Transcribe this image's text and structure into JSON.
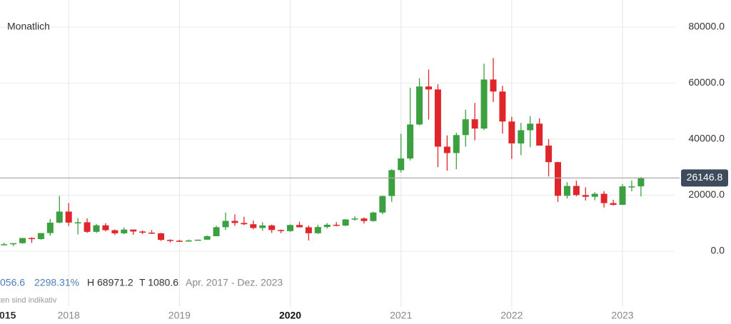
{
  "chart_data": {
    "type": "candlestick",
    "title": "Monatlich",
    "categories": [
      null,
      null,
      null,
      null,
      null,
      null,
      null,
      "2018",
      null,
      null,
      null,
      null,
      null,
      null,
      null,
      null,
      null,
      null,
      null,
      "2019",
      null,
      null,
      null,
      null,
      null,
      null,
      null,
      null,
      null,
      null,
      null,
      "2020",
      null,
      null,
      null,
      null,
      null,
      null,
      null,
      null,
      null,
      null,
      null,
      "2021",
      null,
      null,
      null,
      null,
      null,
      null,
      null,
      null,
      null,
      null,
      null,
      "2022",
      null,
      null,
      null,
      null,
      null,
      null,
      null,
      null,
      null,
      null,
      null,
      "2023",
      null,
      null
    ],
    "open": [
      2400,
      2480,
      2870,
      4700,
      4340,
      6470,
      10200,
      14150,
      10220,
      10330,
      6920,
      9240,
      7500,
      6390,
      7730,
      7030,
      6630,
      6370,
      4040,
      3740,
      3460,
      3850,
      4110,
      5350,
      8570,
      10820,
      10090,
      9630,
      8290,
      9200,
      7570,
      7190,
      9350,
      8540,
      6420,
      8630,
      9450,
      9140,
      11350,
      11680,
      10780,
      13800,
      19700,
      28950,
      33100,
      45240,
      58800,
      57750,
      37330,
      35040,
      41460,
      47100,
      43790,
      61300,
      57000,
      46300,
      38480,
      43190,
      45540,
      37700,
      31790,
      19780,
      23300,
      20050,
      19430,
      20500,
      17170,
      16550,
      23140,
      23150
    ],
    "high": [
      2980,
      2920,
      4750,
      4980,
      6470,
      11500,
      19700,
      17200,
      11800,
      11700,
      9750,
      9990,
      7760,
      8490,
      7750,
      7400,
      7540,
      6550,
      4240,
      4100,
      4200,
      4140,
      5640,
      9080,
      13800,
      13130,
      12300,
      10900,
      10350,
      9510,
      7740,
      9590,
      10500,
      9190,
      9440,
      10070,
      10380,
      11440,
      12470,
      12070,
      14100,
      19860,
      29300,
      41950,
      58350,
      61780,
      64860,
      59590,
      41330,
      42320,
      50500,
      52920,
      66930,
      68971.2,
      59040,
      47990,
      45800,
      48230,
      47440,
      40000,
      31960,
      24670,
      25200,
      22800,
      21080,
      21480,
      18390,
      23950,
      25250,
      26500
    ],
    "low": [
      2100,
      1840,
      2650,
      2970,
      4110,
      5550,
      10000,
      9000,
      6000,
      6550,
      6520,
      7060,
      5780,
      6070,
      5880,
      6100,
      6180,
      3650,
      3150,
      3400,
      3390,
      3700,
      4090,
      5330,
      7560,
      9070,
      9320,
      7830,
      7300,
      6530,
      6430,
      6860,
      8480,
      3860,
      6150,
      8100,
      8900,
      8970,
      10870,
      9880,
      10540,
      13200,
      17600,
      28130,
      32400,
      44950,
      47000,
      30000,
      28800,
      29280,
      37330,
      39600,
      43300,
      53250,
      42000,
      32930,
      34320,
      37160,
      37700,
      26700,
      17600,
      18780,
      19600,
      18150,
      18200,
      15600,
      16260,
      16500,
      21400,
      19550
    ],
    "close": [
      2480,
      2870,
      4700,
      4340,
      6470,
      10200,
      14150,
      10220,
      10330,
      6920,
      9240,
      7500,
      6390,
      7730,
      7030,
      6630,
      6370,
      4040,
      3740,
      3460,
      3850,
      4110,
      5350,
      8570,
      10820,
      10090,
      9630,
      8290,
      9200,
      7570,
      7190,
      9350,
      8540,
      6420,
      8630,
      9450,
      9140,
      11350,
      11680,
      10780,
      13800,
      19700,
      28950,
      33100,
      45240,
      58800,
      57750,
      37330,
      35040,
      41460,
      47100,
      43790,
      61300,
      57000,
      46300,
      38480,
      43190,
      45540,
      37700,
      31790,
      19780,
      23300,
      20050,
      19430,
      20500,
      17170,
      16550,
      23140,
      23150,
      26146.8
    ],
    "up_color": "#3c9f40",
    "down_color": "#e0262b",
    "ylim": [
      0,
      80000
    ],
    "yticks": [
      {
        "value": 0,
        "label": "0.0"
      },
      {
        "value": 20000,
        "label": "20000.0"
      },
      {
        "value": 40000,
        "label": "40000.0"
      },
      {
        "value": 60000,
        "label": "60000.0"
      },
      {
        "value": 80000,
        "label": "80000.0"
      }
    ],
    "grid": true,
    "left_cut_label": "015",
    "stats": [
      "056.6",
      "2298.31%",
      "H 68971.2",
      "T 1080.6",
      "Apr. 2017 - Dez. 2023"
    ],
    "note": "ten sind indikativ"
  }
}
